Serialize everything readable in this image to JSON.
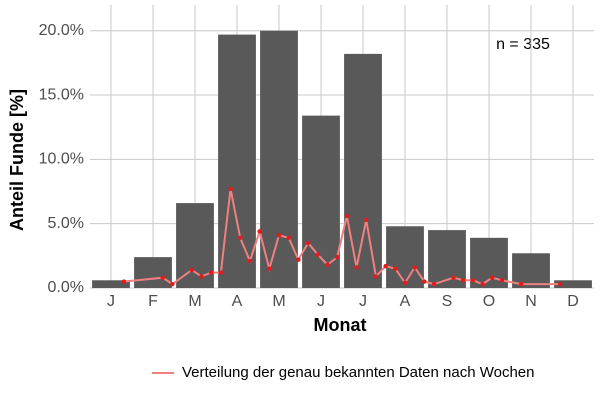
{
  "chart_data": {
    "type": "bar",
    "y_label": "Anteil Funde [%]",
    "x_label": "Monat",
    "annotation": "n = 335",
    "categories": [
      "J",
      "F",
      "M",
      "A",
      "M",
      "J",
      "J",
      "A",
      "S",
      "O",
      "N",
      "D"
    ],
    "values": [
      0.6,
      2.4,
      6.6,
      19.7,
      20.0,
      13.4,
      18.2,
      4.8,
      4.5,
      3.9,
      2.7,
      0.6
    ],
    "color": "#595959",
    "ylim": [
      0,
      22
    ],
    "yticks": [
      {
        "value": 0,
        "label": "0.0%"
      },
      {
        "value": 5,
        "label": "5.0%"
      },
      {
        "value": 10,
        "label": "10.0%"
      },
      {
        "value": 15,
        "label": "15.0%"
      },
      {
        "value": 20,
        "label": "20.0%"
      }
    ],
    "grid": true,
    "line": {
      "type": "line",
      "name": "Verteilung der genau bekannten Daten nach Wochen",
      "color": "#f08080",
      "point_color": "#e41a1c",
      "xlim": [
        0.5,
        52.5
      ],
      "x": [
        4,
        8,
        9,
        11,
        12,
        13,
        14,
        15,
        16,
        17,
        18,
        19,
        20,
        21,
        22,
        23,
        24,
        25,
        26,
        27,
        28,
        29,
        30,
        31,
        32,
        33,
        34,
        35,
        36,
        38,
        39,
        40,
        41,
        42,
        43,
        45,
        49
      ],
      "values": [
        0.5,
        0.8,
        0.3,
        1.4,
        0.9,
        1.2,
        1.2,
        7.7,
        3.9,
        2.1,
        4.4,
        1.5,
        4.1,
        3.9,
        2.2,
        3.5,
        2.6,
        1.8,
        2.4,
        5.6,
        1.6,
        5.3,
        0.9,
        1.7,
        1.5,
        0.4,
        1.6,
        0.5,
        0.3,
        0.8,
        0.6,
        0.6,
        0.3,
        0.8,
        0.6,
        0.3,
        0.3
      ]
    },
    "legend": "bottom"
  }
}
